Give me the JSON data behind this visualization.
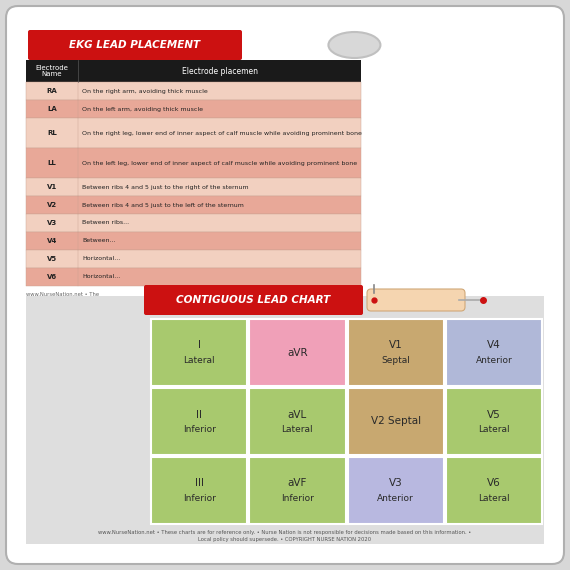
{
  "title_ekg": "EKG LEAD PLACEMENT",
  "title_contiguous": "CONTIGUOUS LEAD CHART",
  "header_col1": "Electrode\nName",
  "header_col2": "Electrode placemen",
  "table_rows": [
    {
      "name": "RA",
      "desc": "On the right arm, avoiding thick muscle",
      "highlight": false
    },
    {
      "name": "LA",
      "desc": "On the left arm, avoiding thick muscle",
      "highlight": true
    },
    {
      "name": "RL",
      "desc": "On the right leg, lower end of inner aspect of calf muscle while avoiding prominent bone",
      "highlight": false
    },
    {
      "name": "LL",
      "desc": "On the left leg, lower end of inner aspect of calf muscle while avoiding prominent bone",
      "highlight": true
    },
    {
      "name": "V1",
      "desc": "Between ribs 4 and 5 just to the right of the sternum",
      "highlight": false
    },
    {
      "name": "V2",
      "desc": "Between ribs 4 and 5 just to the left of the sternum",
      "highlight": true
    },
    {
      "name": "V3",
      "desc": "Between ribs...",
      "highlight": false
    },
    {
      "name": "V4",
      "desc": "Between...",
      "highlight": true
    },
    {
      "name": "V5",
      "desc": "Horizontal...",
      "highlight": false
    },
    {
      "name": "V6",
      "desc": "Horizontal...",
      "highlight": true
    }
  ],
  "grid_cells": [
    {
      "row": 0,
      "col": 0,
      "lead": "I",
      "region": "Lateral",
      "color": "#a8c96e"
    },
    {
      "row": 0,
      "col": 1,
      "lead": "aVR",
      "region": "",
      "color": "#f0a0b8"
    },
    {
      "row": 0,
      "col": 2,
      "lead": "V1",
      "region": "Septal",
      "color": "#c8a870"
    },
    {
      "row": 0,
      "col": 3,
      "lead": "V4",
      "region": "Anterior",
      "color": "#b0b8d8"
    },
    {
      "row": 1,
      "col": 0,
      "lead": "II",
      "region": "Inferior",
      "color": "#a8c96e"
    },
    {
      "row": 1,
      "col": 1,
      "lead": "aVL",
      "region": "Lateral",
      "color": "#a8c96e"
    },
    {
      "row": 1,
      "col": 2,
      "lead": "V2 Septal",
      "region": "",
      "color": "#c8a870"
    },
    {
      "row": 1,
      "col": 3,
      "lead": "V5",
      "region": "Lateral",
      "color": "#a8c96e"
    },
    {
      "row": 2,
      "col": 0,
      "lead": "III",
      "region": "Inferior",
      "color": "#a8c96e"
    },
    {
      "row": 2,
      "col": 1,
      "lead": "aVF",
      "region": "Inferior",
      "color": "#a8c96e"
    },
    {
      "row": 2,
      "col": 2,
      "lead": "V3",
      "region": "Anterior",
      "color": "#b8b8e0"
    },
    {
      "row": 2,
      "col": 3,
      "lead": "V6",
      "region": "Lateral",
      "color": "#a8c96e"
    }
  ],
  "footer_text": "www.NurseNation.net • These charts are for reference only. • Nurse Nation is not responsible for decisions made based on this information. •\nLocal policy should supersede. • COPYRIGHT NURSE NATION 2020",
  "footer_text2": "www.NurseNation.net • The",
  "bg_color": "#d8d8d8",
  "card_bg": "#ffffff",
  "red_color": "#cc1111",
  "header_bg": "#1a1a1a",
  "row_light": "#f2d0c0",
  "row_dark": "#e8a898",
  "grid_bg": "#e0e0e0"
}
